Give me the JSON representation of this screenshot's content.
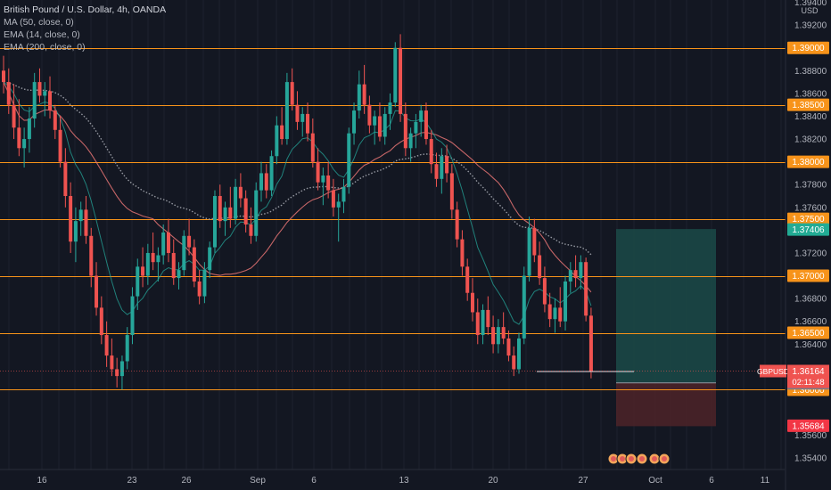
{
  "legend": {
    "title": "British Pound / U.S. Dollar, 4h, OANDA",
    "indicators": [
      "MA (50, close, 0)",
      "EMA (14, close, 0)",
      "EMA (200, close, 0)"
    ]
  },
  "currency": "USD",
  "colors": {
    "background": "#131722",
    "grid": "#1e222d",
    "up": "#26a69a",
    "down": "#ef5350",
    "level": "#f7931a",
    "ma50": "#e57373",
    "ema14": "#26a69a",
    "ema200": "#9598a1",
    "target_zone": "#1b4a48",
    "stop_zone": "#4a2228"
  },
  "chart_data": {
    "type": "candlestick",
    "symbol": "GBPUSD",
    "timeframe": "4h",
    "y_axis": {
      "ticks": [
        "1.39400",
        "1.39200",
        "1.38800",
        "1.38600",
        "1.38400",
        "1.38200",
        "1.37800",
        "1.37600",
        "1.37200",
        "1.36800",
        "1.36600",
        "1.36400",
        "1.35600",
        "1.35400"
      ],
      "ylim": [
        1.353,
        1.3942
      ]
    },
    "x_axis": {
      "ticks": [
        "16",
        "23",
        "26",
        "Sep",
        "6",
        "13",
        "20",
        "27",
        "Oct",
        "6",
        "11"
      ]
    },
    "horizontal_levels": [
      "1.39000",
      "1.38500",
      "1.38000",
      "1.37500",
      "1.37000",
      "1.36500",
      "1.36000"
    ],
    "current_price": {
      "symbol": "GBPUSD",
      "value": "1.36164",
      "countdown": "02:11:48"
    },
    "price_labels": {
      "target": "1.37406",
      "entry": "1.36056",
      "stop": "1.35684"
    },
    "position": {
      "entry": 1.3606,
      "target": 1.3741,
      "stop": 1.3568
    },
    "support_line": 1.3616,
    "candles": [
      {
        "o": 1.388,
        "h": 1.3893,
        "l": 1.386,
        "c": 1.387
      },
      {
        "o": 1.387,
        "h": 1.3882,
        "l": 1.3842,
        "c": 1.385
      },
      {
        "o": 1.385,
        "h": 1.3868,
        "l": 1.382,
        "c": 1.383
      },
      {
        "o": 1.383,
        "h": 1.3855,
        "l": 1.3805,
        "c": 1.3812
      },
      {
        "o": 1.3812,
        "h": 1.383,
        "l": 1.3795,
        "c": 1.382
      },
      {
        "o": 1.382,
        "h": 1.3848,
        "l": 1.3808,
        "c": 1.3838
      },
      {
        "o": 1.3838,
        "h": 1.3878,
        "l": 1.383,
        "c": 1.387
      },
      {
        "o": 1.387,
        "h": 1.3882,
        "l": 1.3852,
        "c": 1.3858
      },
      {
        "o": 1.3858,
        "h": 1.387,
        "l": 1.384,
        "c": 1.3862
      },
      {
        "o": 1.3862,
        "h": 1.3875,
        "l": 1.3838,
        "c": 1.3845
      },
      {
        "o": 1.3845,
        "h": 1.385,
        "l": 1.382,
        "c": 1.3828
      },
      {
        "o": 1.3828,
        "h": 1.384,
        "l": 1.3795,
        "c": 1.38
      },
      {
        "o": 1.38,
        "h": 1.3812,
        "l": 1.376,
        "c": 1.377
      },
      {
        "o": 1.377,
        "h": 1.3782,
        "l": 1.372,
        "c": 1.373
      },
      {
        "o": 1.373,
        "h": 1.376,
        "l": 1.3712,
        "c": 1.3748
      },
      {
        "o": 1.3748,
        "h": 1.3765,
        "l": 1.3735,
        "c": 1.3758
      },
      {
        "o": 1.3758,
        "h": 1.377,
        "l": 1.3728,
        "c": 1.3735
      },
      {
        "o": 1.3735,
        "h": 1.3742,
        "l": 1.369,
        "c": 1.37
      },
      {
        "o": 1.37,
        "h": 1.3712,
        "l": 1.3665,
        "c": 1.3672
      },
      {
        "o": 1.3672,
        "h": 1.3682,
        "l": 1.364,
        "c": 1.3648
      },
      {
        "o": 1.3648,
        "h": 1.366,
        "l": 1.362,
        "c": 1.363
      },
      {
        "o": 1.363,
        "h": 1.3645,
        "l": 1.3612,
        "c": 1.3618
      },
      {
        "o": 1.3618,
        "h": 1.3628,
        "l": 1.3602,
        "c": 1.3612
      },
      {
        "o": 1.3612,
        "h": 1.363,
        "l": 1.36,
        "c": 1.3625
      },
      {
        "o": 1.3625,
        "h": 1.3655,
        "l": 1.3618,
        "c": 1.3648
      },
      {
        "o": 1.3648,
        "h": 1.369,
        "l": 1.364,
        "c": 1.3682
      },
      {
        "o": 1.3682,
        "h": 1.3715,
        "l": 1.367,
        "c": 1.3708
      },
      {
        "o": 1.3708,
        "h": 1.3725,
        "l": 1.369,
        "c": 1.37
      },
      {
        "o": 1.37,
        "h": 1.3728,
        "l": 1.3692,
        "c": 1.372
      },
      {
        "o": 1.372,
        "h": 1.3738,
        "l": 1.3705,
        "c": 1.3712
      },
      {
        "o": 1.3712,
        "h": 1.3725,
        "l": 1.3695,
        "c": 1.3718
      },
      {
        "o": 1.3718,
        "h": 1.3745,
        "l": 1.371,
        "c": 1.3738
      },
      {
        "o": 1.3738,
        "h": 1.375,
        "l": 1.3712,
        "c": 1.372
      },
      {
        "o": 1.372,
        "h": 1.3732,
        "l": 1.3692,
        "c": 1.3698
      },
      {
        "o": 1.3698,
        "h": 1.3712,
        "l": 1.3688,
        "c": 1.3705
      },
      {
        "o": 1.3705,
        "h": 1.374,
        "l": 1.37,
        "c": 1.3735
      },
      {
        "o": 1.3735,
        "h": 1.375,
        "l": 1.3718,
        "c": 1.3725
      },
      {
        "o": 1.3725,
        "h": 1.3732,
        "l": 1.369,
        "c": 1.3695
      },
      {
        "o": 1.3695,
        "h": 1.3705,
        "l": 1.3675,
        "c": 1.3682
      },
      {
        "o": 1.3682,
        "h": 1.3712,
        "l": 1.3676,
        "c": 1.3705
      },
      {
        "o": 1.3705,
        "h": 1.373,
        "l": 1.3698,
        "c": 1.3725
      },
      {
        "o": 1.3725,
        "h": 1.3775,
        "l": 1.372,
        "c": 1.377
      },
      {
        "o": 1.377,
        "h": 1.378,
        "l": 1.3742,
        "c": 1.3748
      },
      {
        "o": 1.3748,
        "h": 1.3765,
        "l": 1.3735,
        "c": 1.376
      },
      {
        "o": 1.376,
        "h": 1.3778,
        "l": 1.3742,
        "c": 1.375
      },
      {
        "o": 1.375,
        "h": 1.3785,
        "l": 1.3745,
        "c": 1.3778
      },
      {
        "o": 1.3778,
        "h": 1.379,
        "l": 1.376,
        "c": 1.3768
      },
      {
        "o": 1.3768,
        "h": 1.3775,
        "l": 1.3738,
        "c": 1.3745
      },
      {
        "o": 1.3745,
        "h": 1.376,
        "l": 1.3728,
        "c": 1.3735
      },
      {
        "o": 1.3735,
        "h": 1.3782,
        "l": 1.373,
        "c": 1.3775
      },
      {
        "o": 1.3775,
        "h": 1.38,
        "l": 1.3765,
        "c": 1.379
      },
      {
        "o": 1.379,
        "h": 1.3798,
        "l": 1.3768,
        "c": 1.3775
      },
      {
        "o": 1.3775,
        "h": 1.381,
        "l": 1.377,
        "c": 1.3805
      },
      {
        "o": 1.3805,
        "h": 1.384,
        "l": 1.3798,
        "c": 1.3832
      },
      {
        "o": 1.3832,
        "h": 1.3848,
        "l": 1.3815,
        "c": 1.382
      },
      {
        "o": 1.382,
        "h": 1.3878,
        "l": 1.3815,
        "c": 1.387
      },
      {
        "o": 1.387,
        "h": 1.3882,
        "l": 1.3845,
        "c": 1.385
      },
      {
        "o": 1.385,
        "h": 1.3862,
        "l": 1.3828,
        "c": 1.3835
      },
      {
        "o": 1.3835,
        "h": 1.3848,
        "l": 1.3822,
        "c": 1.3842
      },
      {
        "o": 1.3842,
        "h": 1.3852,
        "l": 1.3818,
        "c": 1.3825
      },
      {
        "o": 1.3825,
        "h": 1.3838,
        "l": 1.3795,
        "c": 1.38
      },
      {
        "o": 1.38,
        "h": 1.3812,
        "l": 1.3775,
        "c": 1.3782
      },
      {
        "o": 1.3782,
        "h": 1.3795,
        "l": 1.3762,
        "c": 1.3788
      },
      {
        "o": 1.3788,
        "h": 1.38,
        "l": 1.3768,
        "c": 1.3775
      },
      {
        "o": 1.3775,
        "h": 1.3785,
        "l": 1.3752,
        "c": 1.376
      },
      {
        "o": 1.376,
        "h": 1.3772,
        "l": 1.373,
        "c": 1.3765
      },
      {
        "o": 1.3765,
        "h": 1.3785,
        "l": 1.3755,
        "c": 1.3778
      },
      {
        "o": 1.3778,
        "h": 1.383,
        "l": 1.3772,
        "c": 1.3825
      },
      {
        "o": 1.3825,
        "h": 1.3852,
        "l": 1.3815,
        "c": 1.3845
      },
      {
        "o": 1.3845,
        "h": 1.388,
        "l": 1.3838,
        "c": 1.3868
      },
      {
        "o": 1.3868,
        "h": 1.3885,
        "l": 1.3842,
        "c": 1.385
      },
      {
        "o": 1.385,
        "h": 1.3858,
        "l": 1.3825,
        "c": 1.3832
      },
      {
        "o": 1.3832,
        "h": 1.3845,
        "l": 1.3815,
        "c": 1.384
      },
      {
        "o": 1.384,
        "h": 1.3852,
        "l": 1.3818,
        "c": 1.3822
      },
      {
        "o": 1.3822,
        "h": 1.3848,
        "l": 1.3815,
        "c": 1.3842
      },
      {
        "o": 1.3842,
        "h": 1.386,
        "l": 1.3828,
        "c": 1.3852
      },
      {
        "o": 1.3852,
        "h": 1.3905,
        "l": 1.3848,
        "c": 1.39
      },
      {
        "o": 1.39,
        "h": 1.3912,
        "l": 1.3835,
        "c": 1.3842
      },
      {
        "o": 1.3842,
        "h": 1.3852,
        "l": 1.3805,
        "c": 1.3812
      },
      {
        "o": 1.3812,
        "h": 1.383,
        "l": 1.38,
        "c": 1.3825
      },
      {
        "o": 1.3825,
        "h": 1.3842,
        "l": 1.3812,
        "c": 1.3835
      },
      {
        "o": 1.3835,
        "h": 1.385,
        "l": 1.3822,
        "c": 1.3845
      },
      {
        "o": 1.3845,
        "h": 1.3852,
        "l": 1.3815,
        "c": 1.382
      },
      {
        "o": 1.382,
        "h": 1.3828,
        "l": 1.379,
        "c": 1.3798
      },
      {
        "o": 1.3798,
        "h": 1.3808,
        "l": 1.3778,
        "c": 1.3785
      },
      {
        "o": 1.3785,
        "h": 1.3812,
        "l": 1.3772,
        "c": 1.3805
      },
      {
        "o": 1.3805,
        "h": 1.3815,
        "l": 1.3782,
        "c": 1.379
      },
      {
        "o": 1.379,
        "h": 1.3798,
        "l": 1.375,
        "c": 1.3758
      },
      {
        "o": 1.3758,
        "h": 1.3765,
        "l": 1.3725,
        "c": 1.3732
      },
      {
        "o": 1.3732,
        "h": 1.374,
        "l": 1.37,
        "c": 1.3708
      },
      {
        "o": 1.3708,
        "h": 1.3715,
        "l": 1.3678,
        "c": 1.3685
      },
      {
        "o": 1.3685,
        "h": 1.3698,
        "l": 1.366,
        "c": 1.3668
      },
      {
        "o": 1.3668,
        "h": 1.368,
        "l": 1.364,
        "c": 1.3648
      },
      {
        "o": 1.3648,
        "h": 1.3675,
        "l": 1.364,
        "c": 1.367
      },
      {
        "o": 1.367,
        "h": 1.3682,
        "l": 1.3648,
        "c": 1.3655
      },
      {
        "o": 1.3655,
        "h": 1.3665,
        "l": 1.3632,
        "c": 1.364
      },
      {
        "o": 1.364,
        "h": 1.3662,
        "l": 1.3632,
        "c": 1.3655
      },
      {
        "o": 1.3655,
        "h": 1.3668,
        "l": 1.364,
        "c": 1.3645
      },
      {
        "o": 1.3645,
        "h": 1.3652,
        "l": 1.3625,
        "c": 1.363
      },
      {
        "o": 1.363,
        "h": 1.3638,
        "l": 1.3612,
        "c": 1.3618
      },
      {
        "o": 1.3618,
        "h": 1.365,
        "l": 1.3614,
        "c": 1.3645
      },
      {
        "o": 1.3645,
        "h": 1.3708,
        "l": 1.364,
        "c": 1.37
      },
      {
        "o": 1.37,
        "h": 1.3752,
        "l": 1.3695,
        "c": 1.3742
      },
      {
        "o": 1.3742,
        "h": 1.375,
        "l": 1.3712,
        "c": 1.3718
      },
      {
        "o": 1.3718,
        "h": 1.373,
        "l": 1.3692,
        "c": 1.3698
      },
      {
        "o": 1.3698,
        "h": 1.3708,
        "l": 1.3668,
        "c": 1.3675
      },
      {
        "o": 1.3675,
        "h": 1.3685,
        "l": 1.3655,
        "c": 1.3662
      },
      {
        "o": 1.3662,
        "h": 1.368,
        "l": 1.365,
        "c": 1.3672
      },
      {
        "o": 1.3672,
        "h": 1.369,
        "l": 1.3655,
        "c": 1.366
      },
      {
        "o": 1.366,
        "h": 1.37,
        "l": 1.3652,
        "c": 1.3695
      },
      {
        "o": 1.3695,
        "h": 1.3712,
        "l": 1.3685,
        "c": 1.3705
      },
      {
        "o": 1.3705,
        "h": 1.3718,
        "l": 1.369,
        "c": 1.3698
      },
      {
        "o": 1.3698,
        "h": 1.3718,
        "l": 1.3688,
        "c": 1.3712
      },
      {
        "o": 1.3712,
        "h": 1.3716,
        "l": 1.366,
        "c": 1.3665
      },
      {
        "o": 1.3665,
        "h": 1.3672,
        "l": 1.361,
        "c": 1.3616
      }
    ]
  }
}
